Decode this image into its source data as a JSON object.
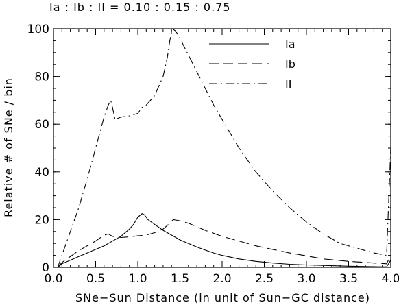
{
  "chart_data": {
    "type": "line",
    "ratio_text": "Ia : Ib : II = 0.10 : 0.15 : 0.75",
    "xlabel": "SNe−Sun Distance (in unit of Sun−GC distance)",
    "ylabel": "Relative # of SNe / bin",
    "xlim": [
      0,
      4
    ],
    "ylim": [
      0,
      100
    ],
    "x_ticks": [
      "0.0",
      "0.5",
      "1.0",
      "1.5",
      "2.0",
      "2.5",
      "3.0",
      "3.5",
      "4.0"
    ],
    "y_ticks": [
      "0",
      "20",
      "40",
      "60",
      "80",
      "100"
    ],
    "legend_position": "top-right",
    "grid": false,
    "series": [
      {
        "name": "Ia",
        "dash": "solid",
        "points": [
          [
            0.05,
            0
          ],
          [
            0.1,
            1.5
          ],
          [
            0.2,
            3
          ],
          [
            0.3,
            4.5
          ],
          [
            0.4,
            6
          ],
          [
            0.5,
            7.5
          ],
          [
            0.6,
            9
          ],
          [
            0.7,
            11
          ],
          [
            0.8,
            13
          ],
          [
            0.9,
            16
          ],
          [
            0.95,
            18
          ],
          [
            1.0,
            21
          ],
          [
            1.05,
            22.5
          ],
          [
            1.08,
            22
          ],
          [
            1.12,
            20
          ],
          [
            1.2,
            18
          ],
          [
            1.3,
            15.5
          ],
          [
            1.4,
            13.5
          ],
          [
            1.5,
            11.5
          ],
          [
            1.6,
            10
          ],
          [
            1.7,
            8.5
          ],
          [
            1.8,
            7.2
          ],
          [
            1.9,
            6
          ],
          [
            2.0,
            5
          ],
          [
            2.2,
            3.5
          ],
          [
            2.4,
            2.5
          ],
          [
            2.6,
            1.8
          ],
          [
            2.8,
            1.3
          ],
          [
            3.0,
            1
          ],
          [
            3.2,
            0.8
          ],
          [
            3.5,
            0.5
          ],
          [
            3.8,
            0.3
          ],
          [
            3.95,
            0.2
          ],
          [
            4.0,
            3
          ]
        ]
      },
      {
        "name": "Ib",
        "dash": "long-dash",
        "points": [
          [
            0.05,
            0
          ],
          [
            0.1,
            2
          ],
          [
            0.2,
            4.5
          ],
          [
            0.3,
            7
          ],
          [
            0.4,
            9
          ],
          [
            0.5,
            11
          ],
          [
            0.6,
            13.5
          ],
          [
            0.65,
            14
          ],
          [
            0.7,
            13
          ],
          [
            0.8,
            12.5
          ],
          [
            0.9,
            12.8
          ],
          [
            1.0,
            13.2
          ],
          [
            1.1,
            13.5
          ],
          [
            1.2,
            14.5
          ],
          [
            1.3,
            16
          ],
          [
            1.38,
            18.5
          ],
          [
            1.42,
            20
          ],
          [
            1.5,
            19.5
          ],
          [
            1.6,
            18.5
          ],
          [
            1.7,
            17
          ],
          [
            1.8,
            15.5
          ],
          [
            2.0,
            13
          ],
          [
            2.2,
            11
          ],
          [
            2.4,
            9
          ],
          [
            2.6,
            7.5
          ],
          [
            2.8,
            6
          ],
          [
            3.0,
            4.8
          ],
          [
            3.2,
            3.5
          ],
          [
            3.5,
            2.5
          ],
          [
            3.8,
            1.8
          ],
          [
            3.95,
            1.5
          ],
          [
            4.0,
            5
          ]
        ]
      },
      {
        "name": "II",
        "dash": "dash-dot",
        "points": [
          [
            0.05,
            0
          ],
          [
            0.1,
            5
          ],
          [
            0.2,
            15
          ],
          [
            0.3,
            25
          ],
          [
            0.4,
            37
          ],
          [
            0.5,
            50
          ],
          [
            0.6,
            63
          ],
          [
            0.65,
            68
          ],
          [
            0.68,
            70
          ],
          [
            0.7,
            67
          ],
          [
            0.73,
            62
          ],
          [
            0.8,
            63
          ],
          [
            0.9,
            63.5
          ],
          [
            1.0,
            64.5
          ],
          [
            1.05,
            67
          ],
          [
            1.1,
            68
          ],
          [
            1.2,
            72
          ],
          [
            1.3,
            80
          ],
          [
            1.35,
            88
          ],
          [
            1.38,
            95
          ],
          [
            1.41,
            100
          ],
          [
            1.45,
            99
          ],
          [
            1.5,
            96
          ],
          [
            1.6,
            89
          ],
          [
            1.7,
            82
          ],
          [
            1.8,
            75
          ],
          [
            1.9,
            68
          ],
          [
            2.0,
            62
          ],
          [
            2.2,
            50
          ],
          [
            2.4,
            40
          ],
          [
            2.6,
            32
          ],
          [
            2.8,
            25
          ],
          [
            3.0,
            19
          ],
          [
            3.2,
            14
          ],
          [
            3.4,
            10
          ],
          [
            3.6,
            8
          ],
          [
            3.8,
            6
          ],
          [
            3.95,
            5
          ],
          [
            4.0,
            50
          ]
        ]
      }
    ]
  }
}
